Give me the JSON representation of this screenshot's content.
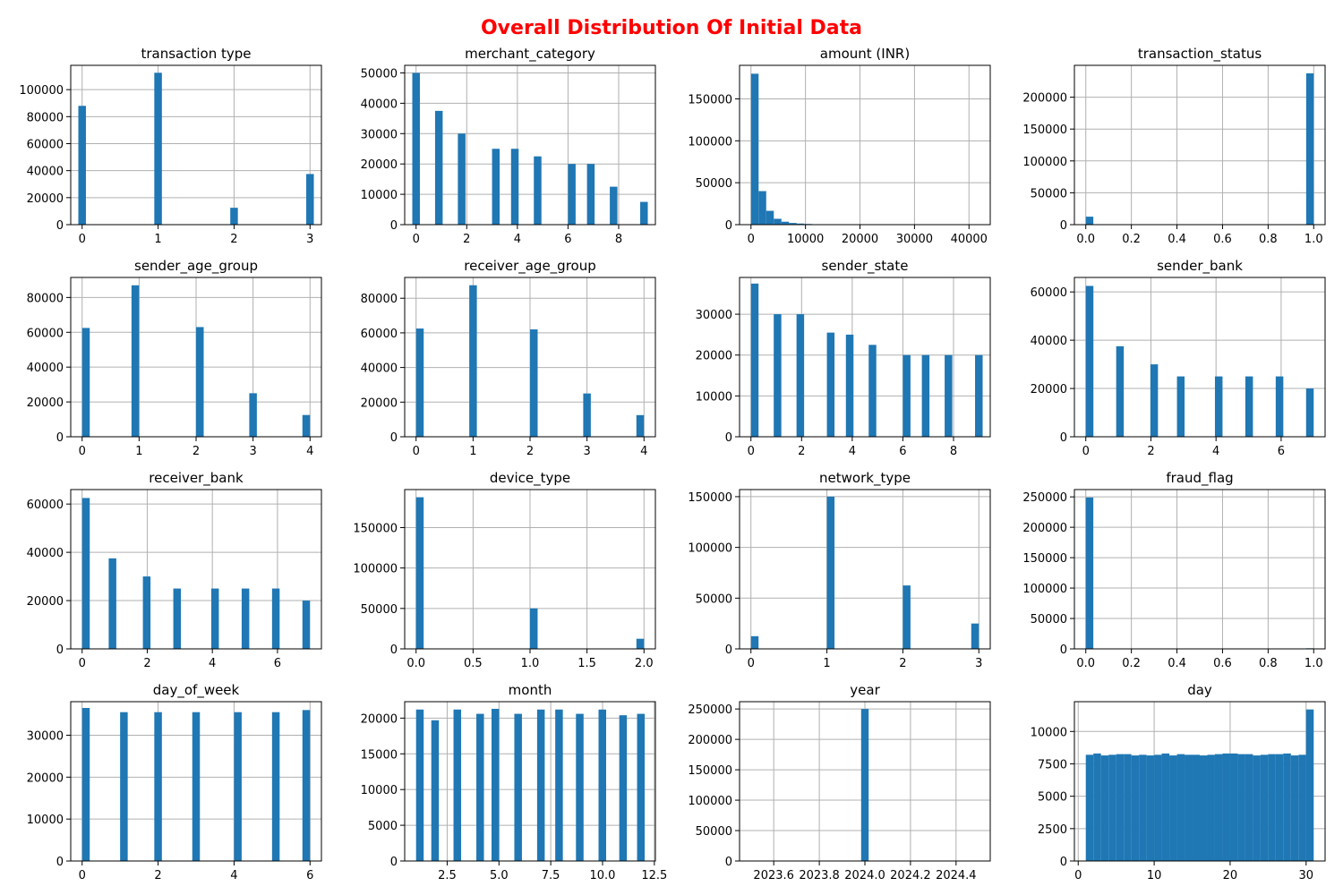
{
  "title": "Overall Distribution Of Initial Data",
  "title_color": "#ff0000",
  "bar_color": "#1f77b4",
  "chart_data": [
    {
      "type": "bar",
      "title": "transaction type",
      "xlim": [
        -0.15,
        3.15
      ],
      "ylim": [
        0,
        118000
      ],
      "xticks": [
        0,
        1,
        2,
        3
      ],
      "xtick_labels": [
        "0",
        "1",
        "2",
        "3"
      ],
      "yticks": [
        0,
        20000,
        40000,
        60000,
        80000,
        100000
      ],
      "ytick_labels": [
        "0",
        "20000",
        "40000",
        "60000",
        "80000",
        "100000"
      ],
      "bin_width": 0.1,
      "x": [
        0,
        1,
        2,
        3
      ],
      "values": [
        88000,
        112500,
        12500,
        37500
      ]
    },
    {
      "type": "bar",
      "title": "merchant_category",
      "xlim": [
        -0.45,
        9.45
      ],
      "ylim": [
        0,
        52500
      ],
      "xticks": [
        0,
        2,
        4,
        6,
        8
      ],
      "xtick_labels": [
        "0",
        "2",
        "4",
        "6",
        "8"
      ],
      "yticks": [
        0,
        10000,
        20000,
        30000,
        40000,
        50000
      ],
      "ytick_labels": [
        "0",
        "10000",
        "20000",
        "30000",
        "40000",
        "50000"
      ],
      "bin_width": 0.3,
      "x": [
        0,
        0.9,
        1.8,
        3.15,
        3.9,
        4.8,
        6.15,
        6.9,
        7.8,
        9
      ],
      "values": [
        50000,
        37500,
        30000,
        25000,
        25000,
        22500,
        20000,
        20000,
        12500,
        7500
      ]
    },
    {
      "type": "bar",
      "title": "amount (INR)",
      "xlim": [
        -2100,
        43900
      ],
      "ylim": [
        0,
        190000
      ],
      "xticks": [
        0,
        10000,
        20000,
        30000,
        40000
      ],
      "xtick_labels": [
        "0",
        "10000",
        "20000",
        "30000",
        "40000"
      ],
      "yticks": [
        0,
        50000,
        100000,
        150000
      ],
      "ytick_labels": [
        "0",
        "50000",
        "100000",
        "150000"
      ],
      "bin_width": 1395,
      "x": [
        698,
        2093,
        3488,
        4883,
        6278,
        7673,
        9068,
        10463,
        11858,
        13253
      ],
      "values": [
        180000,
        40000,
        16500,
        7000,
        3500,
        2000,
        1300,
        800,
        400,
        200
      ]
    },
    {
      "type": "bar",
      "title": "transaction_status",
      "xlim": [
        -0.05,
        1.05
      ],
      "ylim": [
        0,
        250000
      ],
      "xticks": [
        0,
        0.2,
        0.4,
        0.6,
        0.8,
        1.0
      ],
      "xtick_labels": [
        "0.0",
        "0.2",
        "0.4",
        "0.6",
        "0.8",
        "1.0"
      ],
      "yticks": [
        0,
        50000,
        100000,
        150000,
        200000
      ],
      "ytick_labels": [
        "0",
        "50000",
        "100000",
        "150000",
        "200000"
      ],
      "bin_width": 0.033,
      "x": [
        0.0165,
        0.9835
      ],
      "values": [
        12500,
        237500
      ]
    },
    {
      "type": "bar",
      "title": "sender_age_group",
      "xlim": [
        -0.2,
        4.2
      ],
      "ylim": [
        0,
        91500
      ],
      "xticks": [
        0,
        1,
        2,
        3,
        4
      ],
      "xtick_labels": [
        "0",
        "1",
        "2",
        "3",
        "4"
      ],
      "yticks": [
        0,
        20000,
        40000,
        60000,
        80000
      ],
      "ytick_labels": [
        "0",
        "20000",
        "40000",
        "60000",
        "80000"
      ],
      "bin_width": 0.133,
      "x": [
        0.067,
        0.933,
        2.067,
        3,
        3.933
      ],
      "values": [
        62500,
        87000,
        63000,
        25000,
        12500
      ]
    },
    {
      "type": "bar",
      "title": "receiver_age_group",
      "xlim": [
        -0.2,
        4.2
      ],
      "ylim": [
        0,
        92000
      ],
      "xticks": [
        0,
        1,
        2,
        3,
        4
      ],
      "xtick_labels": [
        "0",
        "1",
        "2",
        "3",
        "4"
      ],
      "yticks": [
        0,
        20000,
        40000,
        60000,
        80000
      ],
      "ytick_labels": [
        "0",
        "20000",
        "40000",
        "60000",
        "80000"
      ],
      "bin_width": 0.133,
      "x": [
        0.067,
        1,
        2.067,
        3,
        3.933
      ],
      "values": [
        62500,
        87500,
        62000,
        25000,
        12500
      ]
    },
    {
      "type": "bar",
      "title": "sender_state",
      "xlim": [
        -0.45,
        9.45
      ],
      "ylim": [
        0,
        39000
      ],
      "xticks": [
        0,
        2,
        4,
        6,
        8
      ],
      "xtick_labels": [
        "0",
        "2",
        "4",
        "6",
        "8"
      ],
      "yticks": [
        0,
        10000,
        20000,
        30000
      ],
      "ytick_labels": [
        "0",
        "10000",
        "20000",
        "30000"
      ],
      "bin_width": 0.3,
      "x": [
        0.15,
        1.05,
        1.95,
        3.15,
        3.9,
        4.8,
        6.15,
        6.9,
        7.8,
        9
      ],
      "values": [
        37500,
        30000,
        30000,
        25500,
        25000,
        22500,
        20000,
        20000,
        20000,
        20000
      ]
    },
    {
      "type": "bar",
      "title": "sender_bank",
      "xlim": [
        -0.35,
        7.35
      ],
      "ylim": [
        0,
        66000
      ],
      "xticks": [
        0,
        2,
        4,
        6
      ],
      "xtick_labels": [
        "0",
        "2",
        "4",
        "6"
      ],
      "yticks": [
        0,
        20000,
        40000,
        60000
      ],
      "ytick_labels": [
        "0",
        "20000",
        "40000",
        "60000"
      ],
      "bin_width": 0.233,
      "x": [
        0.117,
        1.05,
        2.1,
        2.917,
        4.083,
        5.017,
        5.95,
        6.883
      ],
      "values": [
        62500,
        37500,
        30000,
        25000,
        25000,
        25000,
        25000,
        20000
      ]
    },
    {
      "type": "bar",
      "title": "receiver_bank",
      "xlim": [
        -0.35,
        7.35
      ],
      "ylim": [
        0,
        66000
      ],
      "xticks": [
        0,
        2,
        4,
        6
      ],
      "xtick_labels": [
        "0",
        "2",
        "4",
        "6"
      ],
      "yticks": [
        0,
        20000,
        40000,
        60000
      ],
      "ytick_labels": [
        "0",
        "20000",
        "40000",
        "60000"
      ],
      "bin_width": 0.233,
      "x": [
        0.117,
        0.933,
        1.983,
        2.917,
        4.083,
        5.017,
        5.95,
        6.883
      ],
      "values": [
        62500,
        37500,
        30000,
        25000,
        25000,
        25000,
        25000,
        20000
      ]
    },
    {
      "type": "bar",
      "title": "device_type",
      "xlim": [
        -0.1,
        2.1
      ],
      "ylim": [
        0,
        197000
      ],
      "xticks": [
        0,
        0.5,
        1.0,
        1.5,
        2.0
      ],
      "xtick_labels": [
        "0.0",
        "0.5",
        "1.0",
        "1.5",
        "2.0"
      ],
      "yticks": [
        0,
        50000,
        100000,
        150000
      ],
      "ytick_labels": [
        "0",
        "50000",
        "100000",
        "150000"
      ],
      "bin_width": 0.067,
      "x": [
        0.033,
        1.033,
        1.967
      ],
      "values": [
        187500,
        50000,
        12500
      ]
    },
    {
      "type": "bar",
      "title": "network_type",
      "xlim": [
        -0.15,
        3.15
      ],
      "ylim": [
        0,
        157000
      ],
      "xticks": [
        0,
        1,
        2,
        3
      ],
      "xtick_labels": [
        "0",
        "1",
        "2",
        "3"
      ],
      "yticks": [
        0,
        50000,
        100000,
        150000
      ],
      "ytick_labels": [
        "0",
        "50000",
        "100000",
        "150000"
      ],
      "bin_width": 0.1,
      "x": [
        0.05,
        1.05,
        2.05,
        2.95
      ],
      "values": [
        12500,
        150000,
        62500,
        25000
      ]
    },
    {
      "type": "bar",
      "title": "fraud_flag",
      "xlim": [
        -0.05,
        1.05
      ],
      "ylim": [
        0,
        262000
      ],
      "xticks": [
        0,
        0.2,
        0.4,
        0.6,
        0.8,
        1.0
      ],
      "xtick_labels": [
        "0.0",
        "0.2",
        "0.4",
        "0.6",
        "0.8",
        "1.0"
      ],
      "yticks": [
        0,
        50000,
        100000,
        150000,
        200000,
        250000
      ],
      "ytick_labels": [
        "0",
        "50000",
        "100000",
        "150000",
        "200000",
        "250000"
      ],
      "bin_width": 0.033,
      "x": [
        0.0165,
        0.9835
      ],
      "values": [
        249000,
        1000
      ]
    },
    {
      "type": "bar",
      "title": "day_of_week",
      "xlim": [
        -0.3,
        6.3
      ],
      "ylim": [
        0,
        38000
      ],
      "xticks": [
        0,
        2,
        4,
        6
      ],
      "xtick_labels": [
        "0",
        "2",
        "4",
        "6"
      ],
      "yticks": [
        0,
        10000,
        20000,
        30000
      ],
      "ytick_labels": [
        "0",
        "10000",
        "20000",
        "30000"
      ],
      "bin_width": 0.2,
      "x": [
        0.1,
        1.1,
        2,
        3,
        4.1,
        5.1,
        5.9
      ],
      "values": [
        36500,
        35500,
        35500,
        35500,
        35500,
        35500,
        36000
      ]
    },
    {
      "type": "bar",
      "title": "month",
      "xlim": [
        0.45,
        12.55
      ],
      "ylim": [
        0,
        22300
      ],
      "xticks": [
        2.5,
        5.0,
        7.5,
        10.0,
        12.5
      ],
      "xtick_labels": [
        "2.5",
        "5.0",
        "7.5",
        "10.0",
        "12.5"
      ],
      "yticks": [
        0,
        5000,
        10000,
        15000,
        20000
      ],
      "ytick_labels": [
        "0",
        "5000",
        "10000",
        "15000",
        "20000"
      ],
      "bin_width": 0.367,
      "x": [
        1.183,
        1.917,
        2.99,
        4.092,
        4.825,
        5.925,
        7.025,
        7.9,
        8.9,
        9.99,
        10.99,
        11.85
      ],
      "values": [
        21200,
        19700,
        21200,
        20600,
        21300,
        20600,
        21200,
        21200,
        20600,
        21200,
        20400,
        20600
      ]
    },
    {
      "type": "bar",
      "title": "year",
      "xlim": [
        2023.45,
        2024.55
      ],
      "ylim": [
        0,
        262000
      ],
      "xticks": [
        2023.6,
        2023.8,
        2024.0,
        2024.2,
        2024.4
      ],
      "xtick_labels": [
        "2023.6",
        "2023.8",
        "2024.0",
        "2024.2",
        "2024.4"
      ],
      "yticks": [
        0,
        50000,
        100000,
        150000,
        200000,
        250000
      ],
      "ytick_labels": [
        "0",
        "50000",
        "100000",
        "150000",
        "200000",
        "250000"
      ],
      "bin_width": 0.033,
      "x": [
        2024.0
      ],
      "values": [
        250000
      ]
    },
    {
      "type": "bar",
      "title": "day",
      "xlim": [
        -0.5,
        32.5
      ],
      "ylim": [
        0,
        12300
      ],
      "xticks": [
        0,
        10,
        20,
        30
      ],
      "xtick_labels": [
        "0",
        "10",
        "20",
        "30"
      ],
      "yticks": [
        0,
        2500,
        5000,
        7500,
        10000
      ],
      "ytick_labels": [
        "0",
        "2500",
        "5000",
        "7500",
        "10000"
      ],
      "bin_width": 1.0,
      "x": [
        1.5,
        2.5,
        3.5,
        4.5,
        5.5,
        6.5,
        7.5,
        8.5,
        9.5,
        10.5,
        11.5,
        12.5,
        13.5,
        14.5,
        15.5,
        16.5,
        17.5,
        18.5,
        19.5,
        20.5,
        21.5,
        22.5,
        23.5,
        24.5,
        25.5,
        26.5,
        27.5,
        28.5,
        29.5,
        30.5
      ],
      "values": [
        8200,
        8300,
        8150,
        8200,
        8250,
        8250,
        8150,
        8200,
        8150,
        8200,
        8300,
        8150,
        8250,
        8200,
        8200,
        8150,
        8200,
        8250,
        8300,
        8300,
        8250,
        8250,
        8150,
        8200,
        8250,
        8250,
        8300,
        8150,
        8200,
        11700
      ]
    }
  ]
}
